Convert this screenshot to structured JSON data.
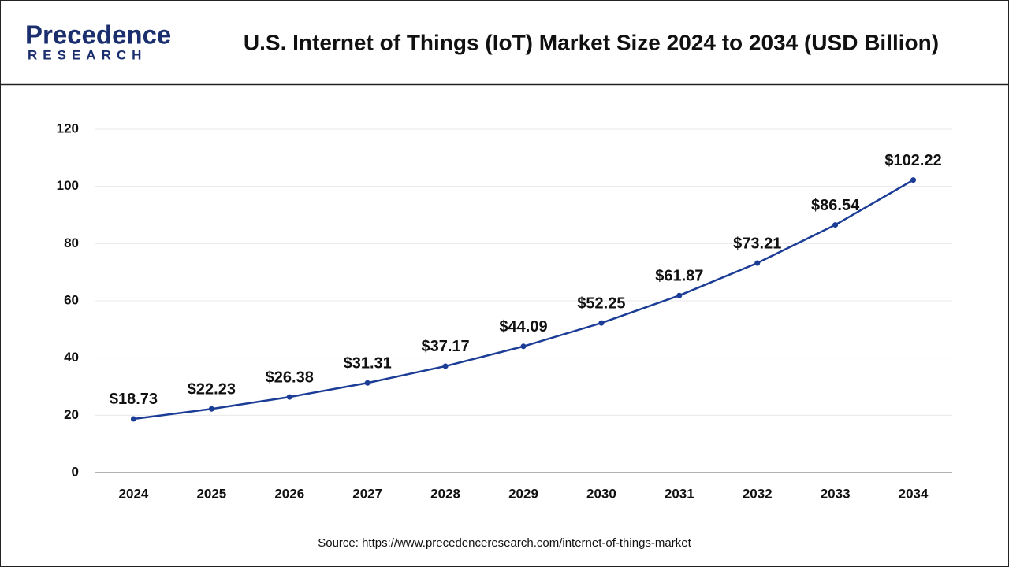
{
  "logo": {
    "name": "Precedence",
    "subtitle": "RESEARCH"
  },
  "chart_data": {
    "type": "line",
    "title": "U.S. Internet of Things (IoT) Market Size 2024 to 2034 (USD Billion)",
    "categories": [
      "2024",
      "2025",
      "2026",
      "2027",
      "2028",
      "2029",
      "2030",
      "2031",
      "2032",
      "2033",
      "2034"
    ],
    "values": [
      18.73,
      22.23,
      26.38,
      31.31,
      37.17,
      44.09,
      52.25,
      61.87,
      73.21,
      86.54,
      102.22
    ],
    "value_labels": [
      "$18.73",
      "$22.23",
      "$26.38",
      "$31.31",
      "$37.17",
      "$44.09",
      "$52.25",
      "$61.87",
      "$73.21",
      "$86.54",
      "$102.22"
    ],
    "color": "#1c3d96",
    "ylim": [
      0,
      120
    ],
    "yticks": [
      0,
      20,
      40,
      60,
      80,
      100,
      120
    ],
    "grid": true,
    "source": "Source: https://www.precedenceresearch.com/internet-of-things-market"
  }
}
